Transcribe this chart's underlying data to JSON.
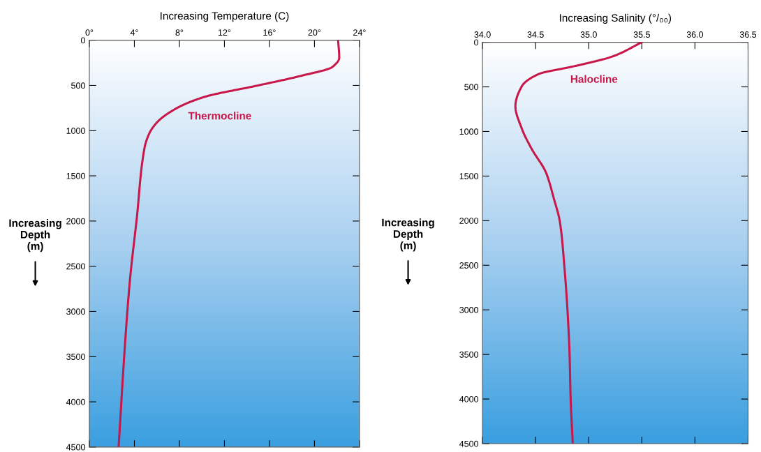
{
  "chart_data": [
    {
      "type": "line",
      "xlabel": "Increasing Temperature (C)",
      "ylabel": "Increasing\nDepth\n(m)",
      "series": [
        {
          "color": "#c8184a",
          "x": [
            22.1,
            22.2,
            21.6,
            18.7,
            15.0,
            10.2,
            7.7,
            6.0,
            5.3,
            4.9,
            4.2,
            3.6,
            3.2,
            2.6
          ],
          "values": [
            0,
            192,
            295,
            397,
            500,
            628,
            756,
            910,
            1038,
            1192,
            1987,
            2662,
            3305,
            4500
          ]
        }
      ],
      "xlim": [
        0,
        24
      ],
      "xticks": [
        {
          "value": 0,
          "label": "0°"
        },
        {
          "value": 4,
          "label": "4°"
        },
        {
          "value": 8,
          "label": "8°"
        },
        {
          "value": 12,
          "label": "12°"
        },
        {
          "value": 16,
          "label": "16°"
        },
        {
          "value": 20,
          "label": "20°"
        },
        {
          "value": 24,
          "label": "24°"
        }
      ],
      "ylim": [
        4500,
        0
      ],
      "yticks": [
        0,
        500,
        1000,
        1500,
        2000,
        2500,
        3000,
        3500,
        4000,
        4500
      ],
      "annotations": [
        "Thermocline"
      ],
      "grid": false,
      "legend": false,
      "marker": "none",
      "line_style": "solid"
    },
    {
      "type": "line",
      "xlabel": "Increasing Salinity (°/₀₀)",
      "ylabel": "Increasing\nDepth\n(m)",
      "series": [
        {
          "color": "#c8184a",
          "x": [
            35.5,
            35.22,
            34.85,
            34.53,
            34.37,
            34.31,
            34.37,
            34.46,
            34.6,
            34.67,
            34.73,
            34.77,
            34.8,
            34.82,
            34.83,
            34.85
          ],
          "values": [
            0,
            161,
            272,
            356,
            494,
            717,
            967,
            1189,
            1467,
            1744,
            2022,
            2500,
            3000,
            3500,
            4000,
            4500
          ]
        }
      ],
      "xlim": [
        34.0,
        36.5
      ],
      "xticks": [
        {
          "value": 34.0,
          "label": "34.0"
        },
        {
          "value": 34.5,
          "label": "34.5"
        },
        {
          "value": 35.0,
          "label": "35.0"
        },
        {
          "value": 35.5,
          "label": "35.5"
        },
        {
          "value": 36.0,
          "label": "36.0"
        },
        {
          "value": 36.5,
          "label": "36.5"
        }
      ],
      "ylim": [
        4500,
        0
      ],
      "yticks": [
        0,
        500,
        1000,
        1500,
        2000,
        2500,
        3000,
        3500,
        4000,
        4500
      ],
      "annotations": [
        "Halocline"
      ],
      "grid": false,
      "legend": false,
      "marker": "none",
      "line_style": "solid"
    }
  ]
}
